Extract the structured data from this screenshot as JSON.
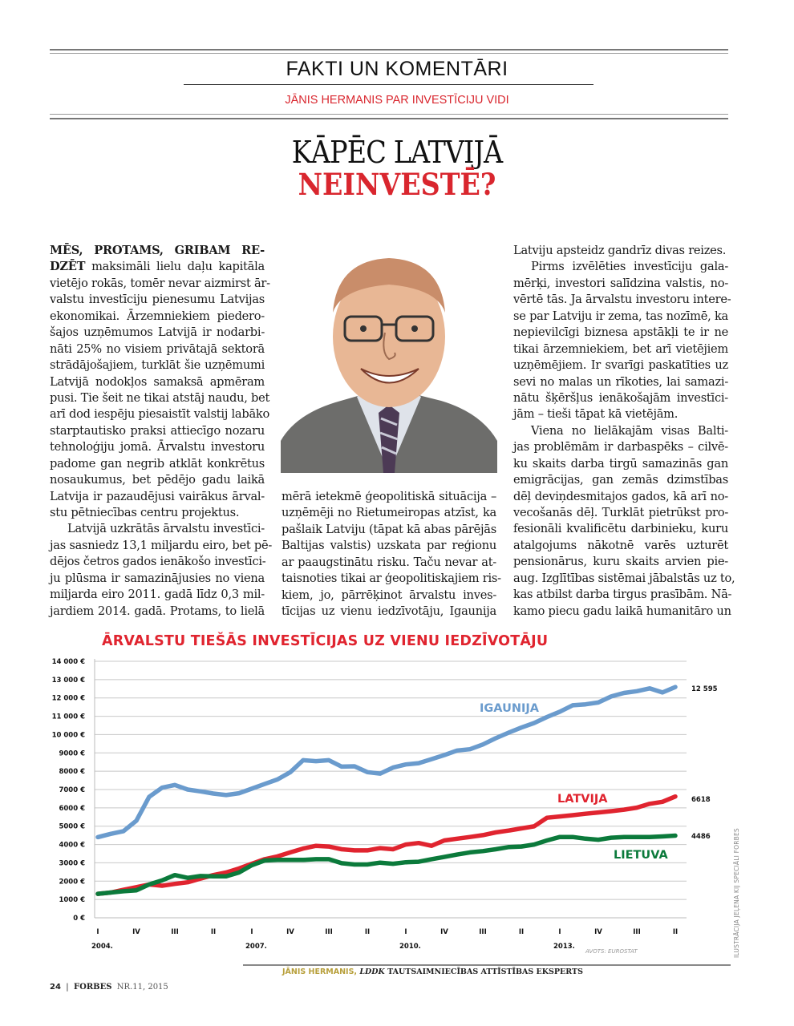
{
  "header": {
    "section": "FAKTI UN KOMENTĀRI",
    "kicker": "JĀNIS HERMANIS PAR INVESTĪCIJU VIDI",
    "headline_line1": "KĀPĒC LATVIJĀ",
    "headline_line2": "NEINVESTĒ?"
  },
  "article": {
    "col1": [
      {
        "bold": "MĒS, PROTAMS, GRIBAM RE-",
        "text": ""
      },
      {
        "bold": "DZĒT",
        "text": " maksimāli lielu daļu kapitāla"
      },
      {
        "text": "vietējo rokās, tomēr nevar aizmirst ār-"
      },
      {
        "text": "valstu investīciju pienesumu Latvijas"
      },
      {
        "text": "ekonomikai. Ārzemniekiem piedero-"
      },
      {
        "text": "šajos uzņēmumos Latvijā ir nodarbi-"
      },
      {
        "text": "nāti 25% no visiem privātajā sektorā"
      },
      {
        "text": "strādājošajiem, turklāt šie uzņēmumi"
      },
      {
        "text": "Latvijā nodokļos samaksā apmēram"
      },
      {
        "text": "pusi. Tie šeit ne tikai atstāj naudu, bet"
      },
      {
        "text": "arī dod iespēju piesaistīt valstij labāko"
      },
      {
        "text": "starptautisko praksi attiecīgo nozaru"
      },
      {
        "text": "tehnoloģiju jomā. Ārvalstu investoru"
      },
      {
        "text": "padome gan negrib atklāt konkrētus"
      },
      {
        "text": "nosaukumus, bet pēdējo gadu laikā"
      },
      {
        "text": "Latvija ir pazaudējusi vairākus ārval-"
      },
      {
        "text": "stu pētniecības centru projektus.",
        "last": true
      },
      {
        "text": "Latvijā uzkrātās ārvalstu investīci-",
        "indent": true
      },
      {
        "text": "jas sasniedz 13,1 miljardu eiro, bet pē-"
      },
      {
        "text": "dējos četros gados ienākošo investīci-"
      },
      {
        "text": "ju plūsma ir samazinājusies no viena"
      },
      {
        "text": "miljarda eiro 2011. gadā līdz 0,3 mil-"
      },
      {
        "text": "jardiem 2014. gadā. Protams, to lielā"
      }
    ],
    "col2": [
      {
        "text": "mērā ietekmē ģeopolitiskā situācija –"
      },
      {
        "text": "uzņēmēji no Rietumeiropas atzīst, ka"
      },
      {
        "text": "pašlaik Latviju (tāpat kā abas pārējās"
      },
      {
        "text": "Baltijas valstis) uzskata par reģionu"
      },
      {
        "text": "ar paaugstinātu risku. Taču nevar at-"
      },
      {
        "text": "taisnoties tikai ar ģeopolitiskajiem ris-"
      },
      {
        "text": "kiem, jo, pārrēķinot ārvalstu inves-"
      },
      {
        "text": "tīcijas uz vienu iedzīvotāju, Igaunija"
      }
    ],
    "col3": [
      {
        "text": "Latviju apsteidz gandrīz divas reizes.",
        "last": true
      },
      {
        "text": "Pirms izvēlēties investīciju gala-",
        "indent": true
      },
      {
        "text": "mērķi, investori salīdzina valstis, no-"
      },
      {
        "text": "vērtē tās. Ja ārvalstu investoru intere-"
      },
      {
        "text": "se par Latviju ir zema, tas nozīmē, ka"
      },
      {
        "text": "nepievilcīgi biznesa apstākļi te ir ne"
      },
      {
        "text": "tikai ārzemniekiem, bet arī vietējiem"
      },
      {
        "text": "uzņēmējiem. Ir svarīgi paskatīties uz"
      },
      {
        "text": "sevi no malas un rīkoties, lai samazi-"
      },
      {
        "text": "nātu šķēršļus ienākošajām investīci-"
      },
      {
        "text": "jām – tieši tāpat kā vietējām.",
        "last": true
      },
      {
        "text": "Viena no lielākajām visas Balti-",
        "indent": true
      },
      {
        "text": "jas problēmām ir darbaspēks – cilvē-"
      },
      {
        "text": "ku skaits darba tirgū samazinās gan"
      },
      {
        "text": "emigrācijas, gan zemās dzimstības"
      },
      {
        "text": "dēļ deviņdesmitajos gados, kā arī no-"
      },
      {
        "text": "vecošanās dēļ. Turklāt pietrūkst pro-"
      },
      {
        "text": "fesionāli kvalificētu darbinieku, kuru"
      },
      {
        "text": "atalgojums nākotnē varēs uzturēt"
      },
      {
        "text": "pensionārus, kuru skaits arvien pie-"
      },
      {
        "text": "aug. Izglītības sistēmai jābalstās uz to,"
      },
      {
        "text": "kas atbilst darba tirgus prasībām. Nā-"
      },
      {
        "text": "kamo piecu gadu laikā humanitāro un"
      }
    ]
  },
  "portrait": {
    "icon": "caricature-portrait"
  },
  "chart_data": {
    "type": "line",
    "title": "ĀRVALSTU TIEŠĀS INVESTĪCIJAS UZ VIENU IEDZĪVOTĀJU",
    "xlabel": "",
    "ylabel": "",
    "ylim": [
      0,
      14000
    ],
    "grid": true,
    "yticks": [
      "0 €",
      "1000 €",
      "2000 €",
      "3000 €",
      "4000 €",
      "5000 €",
      "6000 €",
      "7000 €",
      "8000 €",
      "9000 €",
      "10 000 €",
      "11 000 €",
      "12 000 €",
      "13 000 €",
      "14 000 €"
    ],
    "x_start": "2004 Q1",
    "x_end": "2015 Q2",
    "x_frequency": "quarterly",
    "xtick_labels": [
      "I",
      "IV",
      "III",
      "II",
      "I",
      "IV",
      "III",
      "II",
      "I",
      "IV",
      "III",
      "II",
      "I",
      "IV",
      "III",
      "II"
    ],
    "year_labels": [
      {
        "label": "2004.",
        "tick": 0
      },
      {
        "label": "2007.",
        "tick": 4
      },
      {
        "label": "2010.",
        "tick": 8
      },
      {
        "label": "2013.",
        "tick": 12
      }
    ],
    "source": "AVOTS: EUROSTAT",
    "series": [
      {
        "name": "IGAUNIJA",
        "color": "#6a9bcd",
        "end_label": "12 595",
        "values": [
          4400,
          4580,
          4730,
          5300,
          6600,
          7100,
          7250,
          7000,
          6900,
          6780,
          6700,
          6800,
          7050,
          7300,
          7550,
          7950,
          8600,
          8550,
          8600,
          8250,
          8270,
          7950,
          7870,
          8200,
          8370,
          8440,
          8660,
          8880,
          9130,
          9200,
          9460,
          9800,
          10100,
          10380,
          10630,
          10960,
          11250,
          11600,
          11650,
          11750,
          12080,
          12270,
          12370,
          12520,
          12300,
          12595
        ]
      },
      {
        "name": "LATVIJA",
        "color": "#e0242f",
        "end_label": "6618",
        "values": [
          1310,
          1380,
          1530,
          1670,
          1820,
          1750,
          1850,
          1940,
          2140,
          2330,
          2470,
          2690,
          2950,
          3200,
          3350,
          3570,
          3780,
          3930,
          3890,
          3740,
          3680,
          3680,
          3800,
          3740,
          4000,
          4080,
          3930,
          4220,
          4320,
          4410,
          4510,
          4660,
          4760,
          4880,
          4990,
          5460,
          5530,
          5600,
          5680,
          5750,
          5820,
          5900,
          6010,
          6220,
          6330,
          6618
        ]
      },
      {
        "name": "LIETUVA",
        "color": "#0b7a3b",
        "end_label": "4486",
        "values": [
          1310,
          1380,
          1450,
          1500,
          1820,
          2040,
          2330,
          2180,
          2280,
          2260,
          2260,
          2470,
          2870,
          3130,
          3160,
          3160,
          3160,
          3200,
          3200,
          2980,
          2910,
          2910,
          3010,
          2950,
          3030,
          3060,
          3200,
          3320,
          3450,
          3570,
          3640,
          3740,
          3860,
          3890,
          4000,
          4220,
          4410,
          4410,
          4320,
          4260,
          4370,
          4410,
          4410,
          4410,
          4440,
          4486
        ]
      }
    ]
  },
  "caption": {
    "name": "JĀNIS HERMANIS,",
    "org": "LDDK",
    "role": "TAUTSAIMNIECĪBAS ATTĪSTĪBAS EKSPERTS"
  },
  "footer": {
    "page": "24",
    "separator": "|",
    "brand": "FORBES",
    "issue": "NR.11, 2015"
  },
  "credit": "ILUSTRĀCIJA JEĻENA KIJ SPECIĀLI FORBES"
}
